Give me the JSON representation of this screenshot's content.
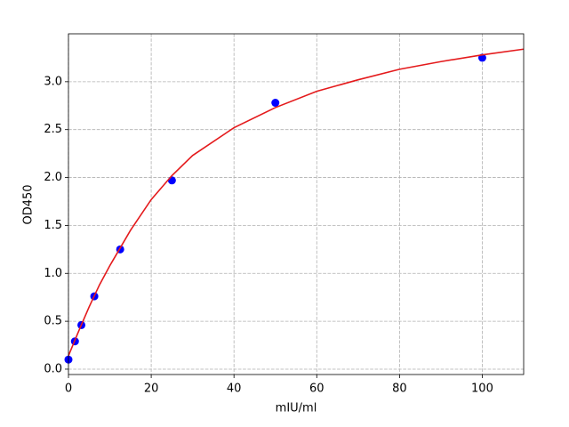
{
  "chart_data": {
    "type": "scatter",
    "x_label": "mIU/ml",
    "y_label": "OD450",
    "xlim": [
      0,
      110
    ],
    "ylim": [
      -0.056,
      3.5
    ],
    "xticks": [
      0,
      20,
      40,
      60,
      80,
      100
    ],
    "yticks": [
      {
        "value": 0,
        "label": "0.0"
      },
      0.5,
      {
        "value": 1,
        "label": "1.0"
      },
      1.5,
      {
        "value": 2,
        "label": "2.0"
      },
      2.5,
      {
        "value": 3,
        "label": "3.0"
      }
    ],
    "grid": true,
    "series": [
      {
        "style": "markers",
        "color": "#0000ff",
        "x": [
          0,
          1.5625,
          3.125,
          6.25,
          12.5,
          25,
          50,
          100
        ],
        "values": [
          0.1,
          0.29,
          0.46,
          0.76,
          1.25,
          1.97,
          2.78,
          3.25
        ]
      },
      {
        "style": "line",
        "color": "#e41a1c",
        "x": [
          0,
          2.5,
          5,
          7.5,
          10,
          15,
          20,
          25,
          30,
          40,
          50,
          60,
          70,
          80,
          90,
          100,
          110
        ],
        "values": [
          0.14,
          0.4,
          0.65,
          0.88,
          1.08,
          1.45,
          1.77,
          2.02,
          2.23,
          2.52,
          2.73,
          2.9,
          3.02,
          3.13,
          3.21,
          3.28,
          3.34
        ]
      }
    ]
  }
}
